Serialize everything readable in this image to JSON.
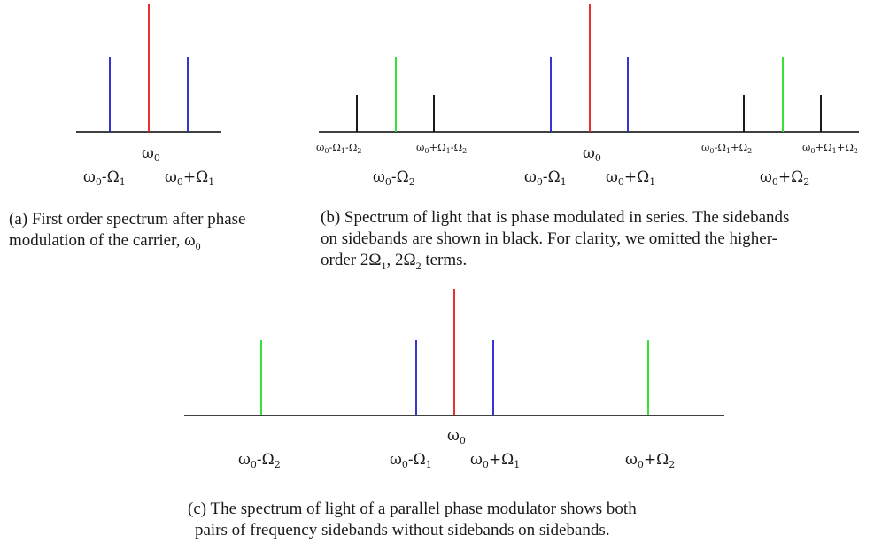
{
  "colors": {
    "carrier": "#e41a1c",
    "omega1_sideband": "#1f1fcc",
    "omega2_sideband": "#22dd22",
    "sideband_on_sideband": "#000000",
    "baseline": "#000000"
  },
  "panels": [
    {
      "id": "a",
      "lines": [
        {
          "freq": "ω0-Ω1",
          "color": "omega1_sideband",
          "height": "medium"
        },
        {
          "freq": "ω0",
          "color": "carrier",
          "height": "tall"
        },
        {
          "freq": "ω0+Ω1",
          "color": "omega1_sideband",
          "height": "medium"
        }
      ],
      "labels": {
        "carrier": [
          "ω",
          "0",
          ""
        ],
        "lower1": [
          "ω",
          "0",
          "-Ω",
          "1"
        ],
        "upper1": [
          "ω",
          "0",
          "+Ω",
          "1"
        ]
      },
      "caption": [
        "(a) First order spectrum after phase",
        "modulation of the carrier, ω",
        "0"
      ]
    },
    {
      "id": "b",
      "lines": [
        {
          "freq": "ω0-Ω1-Ω2",
          "color": "sideband_on_sideband",
          "height": "short"
        },
        {
          "freq": "ω0-Ω2",
          "color": "omega2_sideband",
          "height": "medium"
        },
        {
          "freq": "ω0+Ω1-Ω2",
          "color": "sideband_on_sideband",
          "height": "short"
        },
        {
          "freq": "ω0-Ω1",
          "color": "omega1_sideband",
          "height": "medium"
        },
        {
          "freq": "ω0",
          "color": "carrier",
          "height": "tall"
        },
        {
          "freq": "ω0+Ω1",
          "color": "omega1_sideband",
          "height": "medium"
        },
        {
          "freq": "ω0-Ω1+Ω2",
          "color": "sideband_on_sideband",
          "height": "short"
        },
        {
          "freq": "ω0+Ω2",
          "color": "omega2_sideband",
          "height": "medium"
        },
        {
          "freq": "ω0+Ω1+Ω2",
          "color": "sideband_on_sideband",
          "height": "short"
        }
      ],
      "labels": {
        "ll": [
          "ω",
          "0",
          "-Ω",
          "1",
          "-Ω",
          "2"
        ],
        "lu": [
          "ω",
          "0",
          "+Ω",
          "1",
          "-Ω",
          "2"
        ],
        "ul": [
          "ω",
          "0",
          "-Ω",
          "1",
          "+Ω",
          "2"
        ],
        "uu": [
          "ω",
          "0",
          "+Ω",
          "1",
          "+Ω",
          "2"
        ],
        "lower2": [
          "ω",
          "0",
          "-Ω",
          "2"
        ],
        "carrier": [
          "ω",
          "0"
        ],
        "lower1": [
          "ω",
          "0",
          "-Ω",
          "1"
        ],
        "upper1": [
          "ω",
          "0",
          "+Ω",
          "1"
        ],
        "upper2": [
          "ω",
          "0",
          "+Ω",
          "2"
        ]
      },
      "caption": [
        "(b) Spectrum of light that is phase modulated in series. The sidebands",
        "on sidebands are shown in black. For clarity, we omitted the higher-",
        "order 2Ω",
        "1",
        ", 2Ω",
        "2",
        " terms."
      ]
    },
    {
      "id": "c",
      "lines": [
        {
          "freq": "ω0-Ω2",
          "color": "omega2_sideband",
          "height": "medium"
        },
        {
          "freq": "ω0-Ω1",
          "color": "omega1_sideband",
          "height": "medium"
        },
        {
          "freq": "ω0",
          "color": "carrier",
          "height": "tall"
        },
        {
          "freq": "ω0+Ω1",
          "color": "omega1_sideband",
          "height": "medium"
        },
        {
          "freq": "ω0+Ω2",
          "color": "omega2_sideband",
          "height": "medium"
        }
      ],
      "labels": {
        "carrier": [
          "ω",
          "0"
        ],
        "lower2": [
          "ω",
          "0",
          "-Ω",
          "2"
        ],
        "lower1": [
          "ω",
          "0",
          "-Ω",
          "1"
        ],
        "upper1": [
          "ω",
          "0",
          "+Ω",
          "1"
        ],
        "upper2": [
          "ω",
          "0",
          "+Ω",
          "2"
        ]
      },
      "caption": [
        "(c) The spectrum of light of a parallel phase modulator shows both",
        "pairs of frequency sidebands without sidebands on sidebands."
      ]
    }
  ]
}
